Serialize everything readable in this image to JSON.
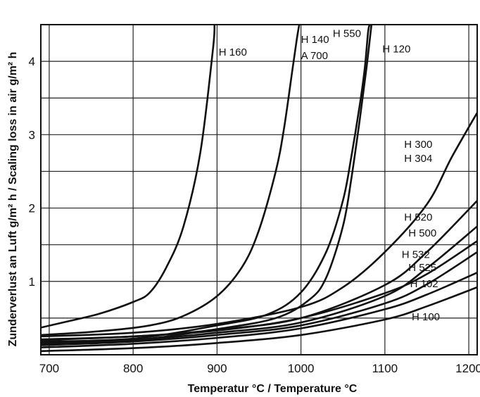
{
  "chart_data": {
    "type": "line",
    "xlabel": "Temperatur °C / Temperature °C",
    "ylabel": "Zunderverlust an Luft g/m² h / Scaling loss in air g/m² h",
    "xlim": [
      690,
      1210
    ],
    "ylim": [
      0,
      4.5
    ],
    "x_ticks": [
      700,
      800,
      900,
      1000,
      1100,
      1200
    ],
    "y_ticks": [
      1,
      2,
      3,
      4
    ],
    "grid": true,
    "series": [
      {
        "name": "H 160",
        "points": [
          [
            690,
            0.37
          ],
          [
            720,
            0.45
          ],
          [
            760,
            0.56
          ],
          [
            800,
            0.72
          ],
          [
            820,
            0.85
          ],
          [
            840,
            1.2
          ],
          [
            860,
            1.75
          ],
          [
            880,
            2.75
          ],
          [
            895,
            4.15
          ],
          [
            897,
            4.5
          ]
        ]
      },
      {
        "name": "H 140 / A 700",
        "points": [
          [
            690,
            0.27
          ],
          [
            760,
            0.32
          ],
          [
            820,
            0.4
          ],
          [
            860,
            0.53
          ],
          [
            900,
            0.8
          ],
          [
            930,
            1.2
          ],
          [
            950,
            1.7
          ],
          [
            970,
            2.5
          ],
          [
            980,
            3.1
          ],
          [
            990,
            3.9
          ],
          [
            995,
            4.3
          ],
          [
            998,
            4.5
          ]
        ]
      },
      {
        "name": "H 550",
        "points": [
          [
            690,
            0.18
          ],
          [
            800,
            0.22
          ],
          [
            900,
            0.4
          ],
          [
            960,
            0.55
          ],
          [
            1000,
            0.85
          ],
          [
            1030,
            1.4
          ],
          [
            1050,
            2.1
          ],
          [
            1060,
            2.7
          ],
          [
            1070,
            3.4
          ],
          [
            1076,
            3.9
          ],
          [
            1080,
            4.4
          ],
          [
            1082,
            4.5
          ]
        ]
      },
      {
        "name": "H 120",
        "points": [
          [
            690,
            0.16
          ],
          [
            800,
            0.2
          ],
          [
            900,
            0.35
          ],
          [
            970,
            0.5
          ],
          [
            1010,
            0.75
          ],
          [
            1030,
            1.05
          ],
          [
            1050,
            1.75
          ],
          [
            1060,
            2.4
          ],
          [
            1070,
            3.2
          ],
          [
            1078,
            3.9
          ],
          [
            1084,
            4.5
          ]
        ]
      },
      {
        "name": "H 300 / H 304",
        "points": [
          [
            690,
            0.25
          ],
          [
            800,
            0.3
          ],
          [
            900,
            0.42
          ],
          [
            1000,
            0.65
          ],
          [
            1050,
            0.92
          ],
          [
            1100,
            1.4
          ],
          [
            1150,
            2.05
          ],
          [
            1180,
            2.7
          ],
          [
            1210,
            3.3
          ]
        ]
      },
      {
        "name": "H 520",
        "points": [
          [
            690,
            0.21
          ],
          [
            800,
            0.25
          ],
          [
            900,
            0.34
          ],
          [
            1000,
            0.5
          ],
          [
            1100,
            0.95
          ],
          [
            1150,
            1.4
          ],
          [
            1210,
            2.1
          ]
        ]
      },
      {
        "name": "H 500",
        "points": [
          [
            690,
            0.15
          ],
          [
            800,
            0.2
          ],
          [
            900,
            0.3
          ],
          [
            1000,
            0.44
          ],
          [
            1100,
            0.8
          ],
          [
            1150,
            1.18
          ],
          [
            1210,
            1.75
          ]
        ]
      },
      {
        "name": "H 532",
        "points": [
          [
            690,
            0.2
          ],
          [
            800,
            0.25
          ],
          [
            900,
            0.33
          ],
          [
            1000,
            0.5
          ],
          [
            1100,
            0.84
          ],
          [
            1150,
            1.1
          ],
          [
            1210,
            1.55
          ]
        ]
      },
      {
        "name": "H 525",
        "points": [
          [
            690,
            0.13
          ],
          [
            800,
            0.18
          ],
          [
            900,
            0.27
          ],
          [
            1000,
            0.4
          ],
          [
            1100,
            0.7
          ],
          [
            1150,
            0.96
          ],
          [
            1210,
            1.4
          ]
        ]
      },
      {
        "name": "H 102",
        "points": [
          [
            690,
            0.1
          ],
          [
            800,
            0.15
          ],
          [
            900,
            0.23
          ],
          [
            1000,
            0.36
          ],
          [
            1100,
            0.62
          ],
          [
            1150,
            0.82
          ],
          [
            1210,
            1.12
          ]
        ]
      },
      {
        "name": "H 100",
        "points": [
          [
            690,
            0.05
          ],
          [
            800,
            0.09
          ],
          [
            900,
            0.16
          ],
          [
            1000,
            0.27
          ],
          [
            1100,
            0.48
          ],
          [
            1150,
            0.66
          ],
          [
            1210,
            0.92
          ]
        ]
      }
    ],
    "labels": [
      {
        "text": "H 160",
        "x": 902,
        "y": 4.08
      },
      {
        "text": "H 140",
        "x": 1000,
        "y": 4.25
      },
      {
        "text": "A 700",
        "x": 1000,
        "y": 4.03
      },
      {
        "text": "H 550",
        "x": 1038,
        "y": 4.33
      },
      {
        "text": "H 120",
        "x": 1097,
        "y": 4.12
      },
      {
        "text": "H 300",
        "x": 1123,
        "y": 2.82
      },
      {
        "text": "H 304",
        "x": 1123,
        "y": 2.63
      },
      {
        "text": "H 520",
        "x": 1123,
        "y": 1.83
      },
      {
        "text": "H 500",
        "x": 1128,
        "y": 1.61
      },
      {
        "text": "H 532",
        "x": 1120,
        "y": 1.32
      },
      {
        "text": "H 525",
        "x": 1128,
        "y": 1.14
      },
      {
        "text": "H 102",
        "x": 1130,
        "y": 0.92
      },
      {
        "text": "H 100",
        "x": 1132,
        "y": 0.47
      }
    ]
  }
}
